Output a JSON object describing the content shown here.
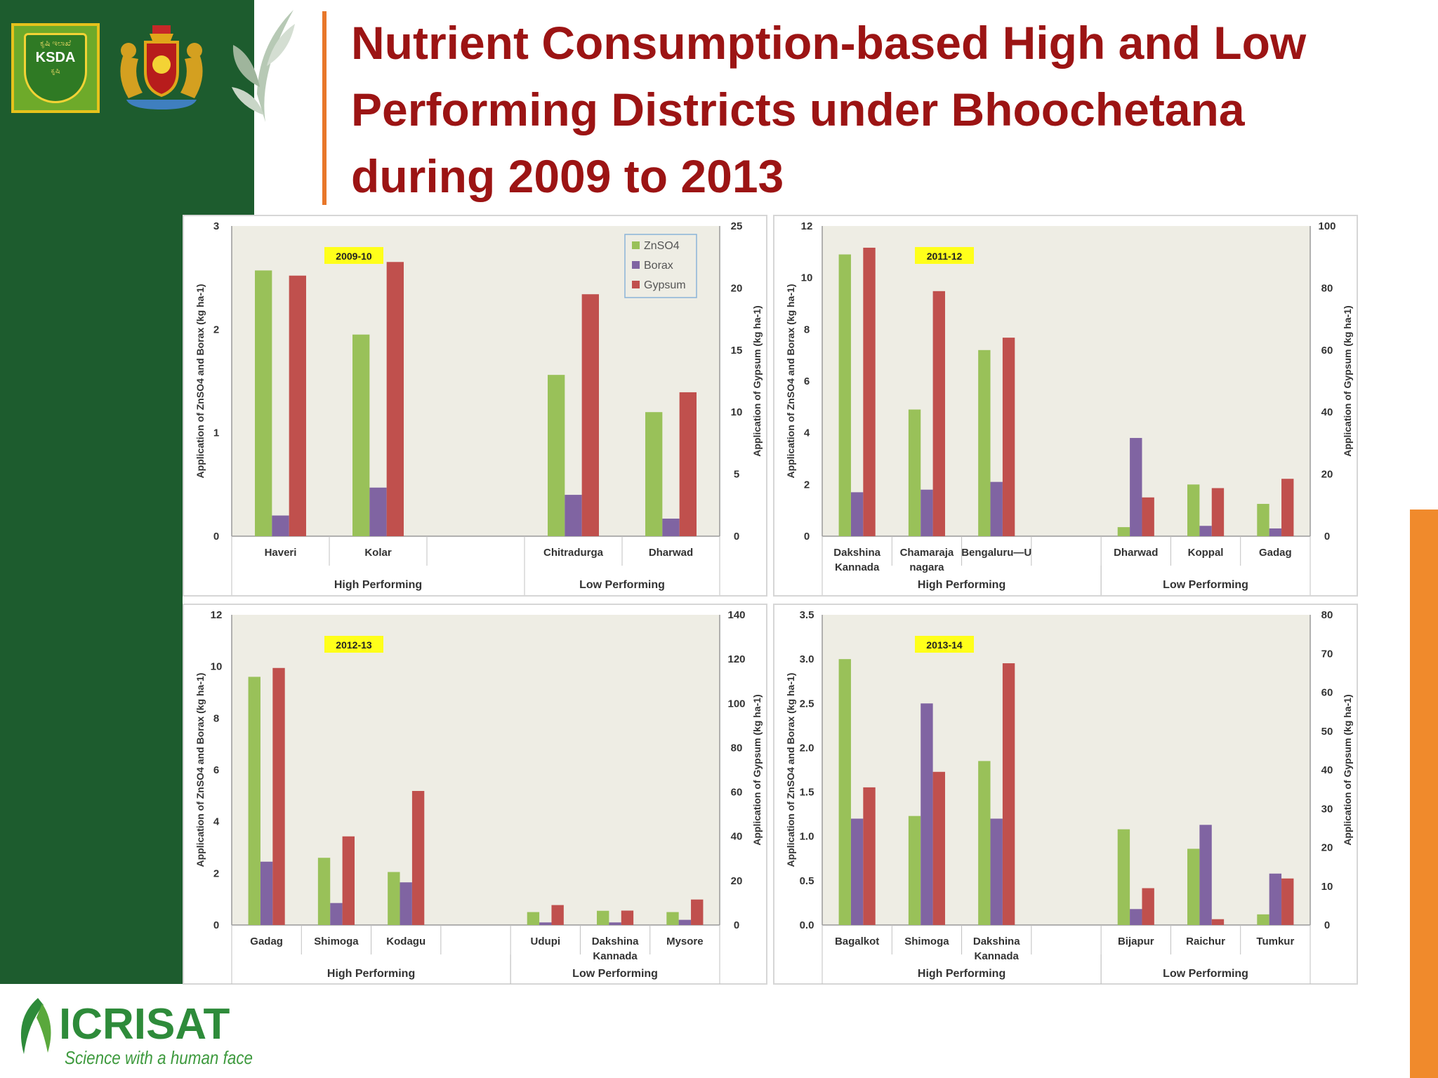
{
  "slide": {
    "title_lines": [
      "Nutrient Consumption-based High and Low",
      "Performing Districts under Bhoochetana",
      "during 2009 to 2013"
    ],
    "ksda_logo": {
      "top_text": "ಕೃಷಿ ಇಲಾಖೆ",
      "main_text": "KSDA",
      "bottom_text": "ಕೃಷಿ"
    },
    "icrisat_logo": {
      "name": "ICRISAT",
      "tagline": "Science with a human face"
    },
    "colors": {
      "green_band": "#1d5c2e",
      "orange_accent": "#f08a2c",
      "title_red": "#9c1414"
    }
  },
  "chart_data": [
    {
      "type": "bar",
      "title": "2009-10",
      "categories": [
        "Haveri",
        "Kolar",
        "",
        "Chitradurga",
        "Dharwad"
      ],
      "groups": [
        {
          "label": "High Performing",
          "from": 0,
          "to": 2
        },
        {
          "label": "Low Performing",
          "from": 3,
          "to": 4
        }
      ],
      "series": [
        {
          "name": "ZnSO4",
          "axis": "left",
          "color": "#99c159",
          "values": [
            2.57,
            1.95,
            null,
            1.56,
            1.2
          ]
        },
        {
          "name": "Borax",
          "axis": "left",
          "color": "#8064a2",
          "values": [
            0.2,
            0.47,
            null,
            0.4,
            0.17
          ]
        },
        {
          "name": "Gypsum",
          "axis": "right",
          "color": "#c0504d",
          "values": [
            21.0,
            22.1,
            null,
            19.5,
            11.6
          ]
        }
      ],
      "ylabel": "Application of ZnSO4 and Borax (kg ha-1)",
      "ylabel2": "Application of Gypsum (kg ha-1)",
      "ylim": [
        0,
        3
      ],
      "yticks": [
        "0",
        "1",
        "2",
        "3"
      ],
      "y2lim": [
        0,
        25
      ],
      "y2ticks": [
        "0",
        "5",
        "10",
        "15",
        "20",
        "25"
      ],
      "legend": "top-right",
      "grid": false
    },
    {
      "type": "bar",
      "title": "2011-12",
      "categories": [
        "Dakshina Kannada",
        "Chamaraja nagara",
        "Bengaluru—U",
        "",
        "Dharwad",
        "Koppal",
        "Gadag"
      ],
      "groups": [
        {
          "label": "High Performing",
          "from": 0,
          "to": 3
        },
        {
          "label": "Low Performing",
          "from": 4,
          "to": 6
        }
      ],
      "series": [
        {
          "name": "ZnSO4",
          "axis": "left",
          "color": "#99c159",
          "values": [
            10.9,
            4.9,
            7.2,
            null,
            0.35,
            2.0,
            1.25
          ]
        },
        {
          "name": "Borax",
          "axis": "left",
          "color": "#8064a2",
          "values": [
            1.7,
            1.8,
            2.1,
            null,
            3.8,
            0.4,
            0.3
          ]
        },
        {
          "name": "Gypsum",
          "axis": "right",
          "color": "#c0504d",
          "values": [
            93,
            79,
            64,
            null,
            12.5,
            15.5,
            18.5
          ]
        }
      ],
      "ylabel": "Application of ZnSO4 and Borax (kg ha-1)",
      "ylabel2": "Application of Gypsum (kg ha-1)",
      "ylim": [
        0,
        12
      ],
      "yticks": [
        "0",
        "2",
        "4",
        "6",
        "8",
        "10",
        "12"
      ],
      "y2lim": [
        0,
        100
      ],
      "y2ticks": [
        "0",
        "20",
        "40",
        "60",
        "80",
        "100"
      ],
      "grid": false
    },
    {
      "type": "bar",
      "title": "2012-13",
      "categories": [
        "Gadag",
        "Shimoga",
        "Kodagu",
        "",
        "Udupi",
        "Dakshina Kannada",
        "Mysore"
      ],
      "groups": [
        {
          "label": "High Performing",
          "from": 0,
          "to": 3
        },
        {
          "label": "Low Performing",
          "from": 4,
          "to": 6
        }
      ],
      "series": [
        {
          "name": "ZnSO4",
          "axis": "left",
          "color": "#99c159",
          "values": [
            9.6,
            2.6,
            2.05,
            null,
            0.5,
            0.55,
            0.5
          ]
        },
        {
          "name": "Borax",
          "axis": "left",
          "color": "#8064a2",
          "values": [
            2.45,
            0.85,
            1.65,
            null,
            0.1,
            0.1,
            0.2
          ]
        },
        {
          "name": "Gypsum",
          "axis": "right",
          "color": "#c0504d",
          "values": [
            116,
            40,
            60.5,
            null,
            9,
            6.5,
            11.5
          ]
        }
      ],
      "ylabel": "Application of ZnSO4 and Borax (kg ha-1)",
      "ylabel2": "Application of Gypsum (kg ha-1)",
      "ylim": [
        0,
        12
      ],
      "yticks": [
        "0",
        "2",
        "4",
        "6",
        "8",
        "10",
        "12"
      ],
      "y2lim": [
        0,
        140
      ],
      "y2ticks": [
        "0",
        "20",
        "40",
        "60",
        "80",
        "100",
        "120",
        "140"
      ],
      "grid": false
    },
    {
      "type": "bar",
      "title": "2013-14",
      "categories": [
        "Bagalkot",
        "Shimoga",
        "Dakshina Kannada",
        "",
        "Bijapur",
        "Raichur",
        "Tumkur"
      ],
      "groups": [
        {
          "label": "High Performing",
          "from": 0,
          "to": 3
        },
        {
          "label": "Low Performing",
          "from": 4,
          "to": 6
        }
      ],
      "series": [
        {
          "name": "ZnSO4",
          "axis": "left",
          "color": "#99c159",
          "values": [
            3.0,
            1.23,
            1.85,
            null,
            1.08,
            0.86,
            0.12
          ]
        },
        {
          "name": "Borax",
          "axis": "left",
          "color": "#8064a2",
          "values": [
            1.2,
            2.5,
            1.2,
            null,
            0.18,
            1.13,
            0.58
          ]
        },
        {
          "name": "Gypsum",
          "axis": "right",
          "color": "#c0504d",
          "values": [
            35.5,
            39.5,
            67.5,
            null,
            9.5,
            1.5,
            12
          ]
        }
      ],
      "ylabel": "Application of ZnSO4 and Borax (kg ha-1)",
      "ylabel2": "Application of Gypsum (kg ha-1)",
      "ylim": [
        0,
        3.5
      ],
      "yticks": [
        "0.0",
        "0.5",
        "1.0",
        "1.5",
        "2.0",
        "2.5",
        "3.0",
        "3.5"
      ],
      "y2lim": [
        0,
        80
      ],
      "y2ticks": [
        "0",
        "10",
        "20",
        "30",
        "40",
        "50",
        "60",
        "70",
        "80"
      ],
      "grid": false
    }
  ]
}
